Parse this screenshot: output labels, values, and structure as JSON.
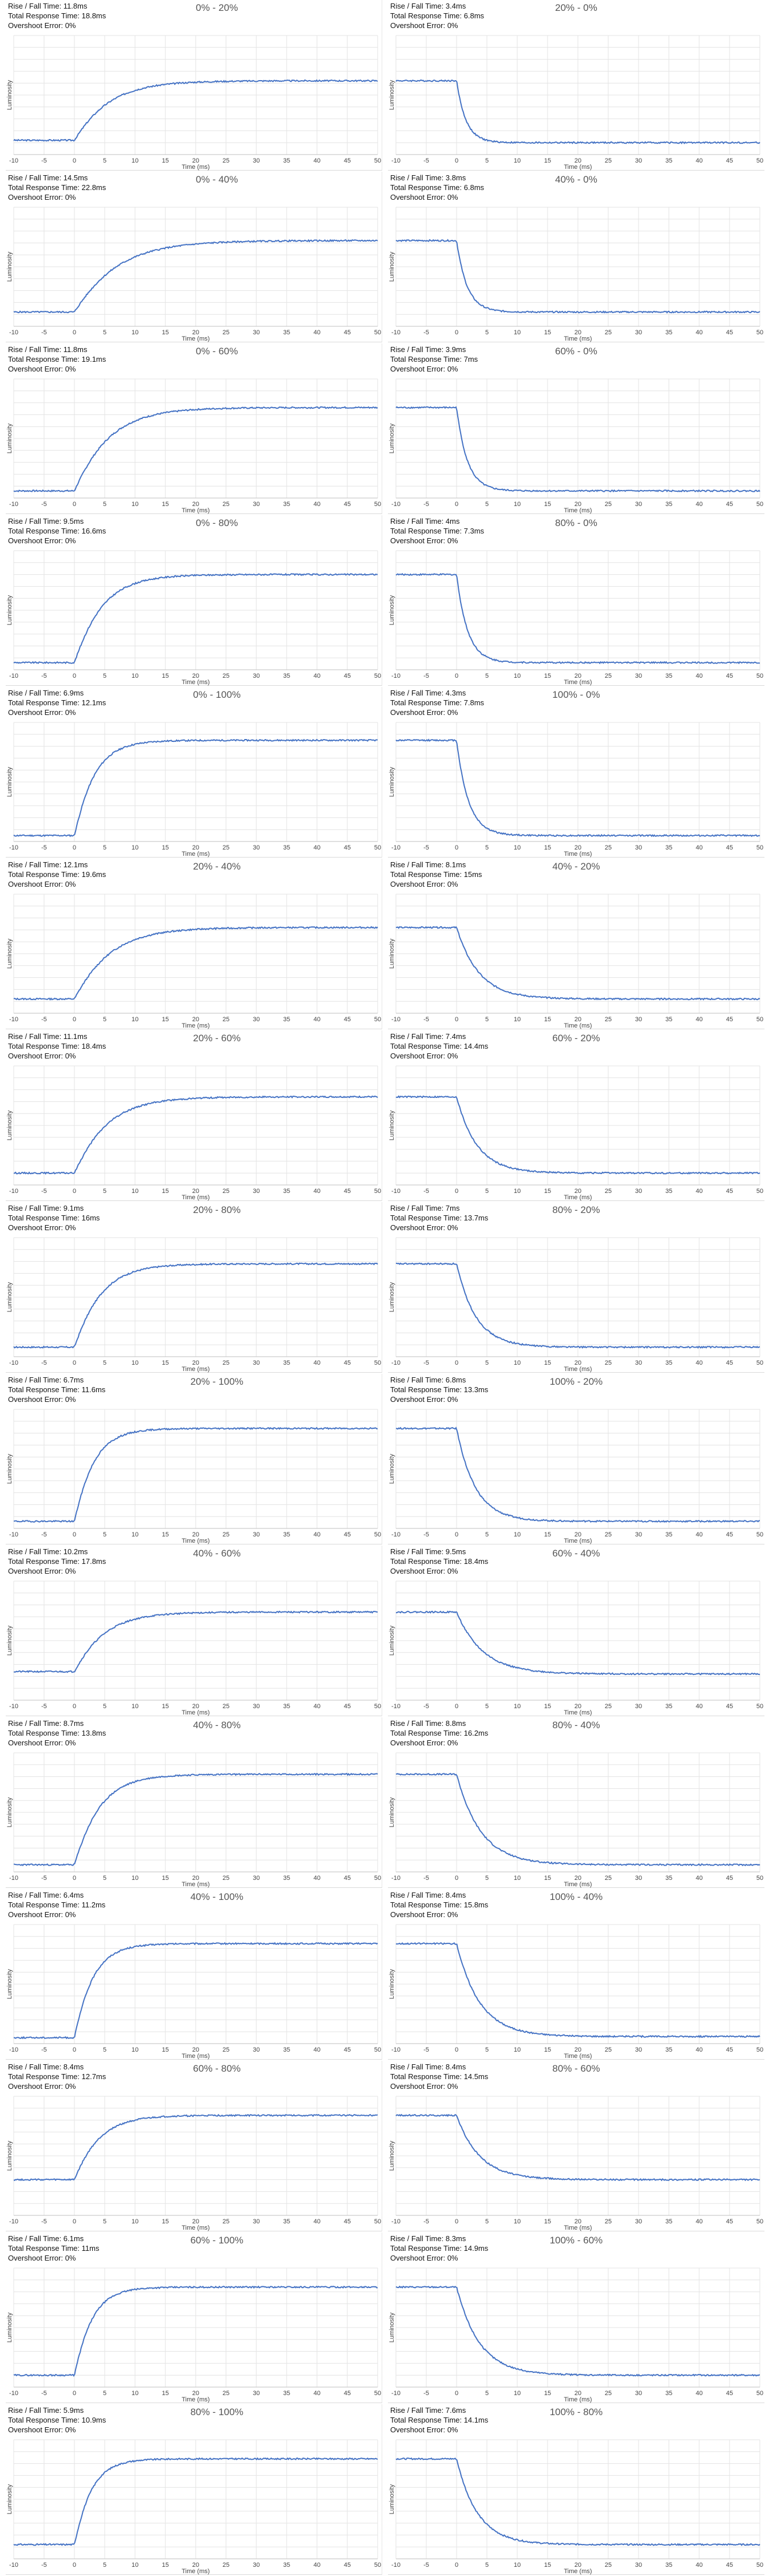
{
  "labels": {
    "rise_fall": "Rise / Fall Time:",
    "total": "Total Response Time:",
    "overshoot": "Overshoot Error:",
    "xlabel": "Time (ms)",
    "ylabel": "Luminosity"
  },
  "colors": {
    "line": "#4472c4",
    "grid": "#e3e3e3",
    "axis": "#bfbfbf"
  },
  "chart_data": [
    {
      "type": "line",
      "title": "0% - 20%",
      "rise_fall": "11.8ms",
      "total": "18.8ms",
      "overshoot": "0%",
      "start": 0.12,
      "end": 0.62,
      "xlim": [
        -10,
        50
      ],
      "xticks": [
        -10,
        -5,
        0,
        5,
        10,
        15,
        20,
        25,
        30,
        35,
        40,
        45,
        50
      ],
      "xlabel": "Time (ms)",
      "ylabel": "Luminosity"
    },
    {
      "type": "line",
      "title": "20% - 0%",
      "rise_fall": "3.4ms",
      "total": "6.8ms",
      "overshoot": "0%",
      "start": 0.62,
      "end": 0.1,
      "xlim": [
        -10,
        50
      ],
      "xticks": [
        -10,
        -5,
        0,
        5,
        10,
        15,
        20,
        25,
        30,
        35,
        40,
        45,
        50
      ],
      "xlabel": "Time (ms)",
      "ylabel": "Luminosity"
    },
    {
      "type": "line",
      "title": "0% - 40%",
      "rise_fall": "14.5ms",
      "total": "22.8ms",
      "overshoot": "0%",
      "start": 0.12,
      "end": 0.72,
      "xlim": [
        -10,
        50
      ],
      "xticks": [
        -10,
        -5,
        0,
        5,
        10,
        15,
        20,
        25,
        30,
        35,
        40,
        45,
        50
      ],
      "xlabel": "Time (ms)",
      "ylabel": "Luminosity"
    },
    {
      "type": "line",
      "title": "40% - 0%",
      "rise_fall": "3.8ms",
      "total": "6.8ms",
      "overshoot": "0%",
      "start": 0.72,
      "end": 0.12,
      "xlim": [
        -10,
        50
      ],
      "xticks": [
        -10,
        -5,
        0,
        5,
        10,
        15,
        20,
        25,
        30,
        35,
        40,
        45,
        50
      ],
      "xlabel": "Time (ms)",
      "ylabel": "Luminosity"
    },
    {
      "type": "line",
      "title": "0% - 60%",
      "rise_fall": "11.8ms",
      "total": "19.1ms",
      "overshoot": "0%",
      "start": 0.06,
      "end": 0.76,
      "xlim": [
        -10,
        50
      ],
      "xticks": [
        -10,
        -5,
        0,
        5,
        10,
        15,
        20,
        25,
        30,
        35,
        40,
        45,
        50
      ],
      "xlabel": "Time (ms)",
      "ylabel": "Luminosity"
    },
    {
      "type": "line",
      "title": "60% - 0%",
      "rise_fall": "3.9ms",
      "total": "7ms",
      "overshoot": "0%",
      "start": 0.76,
      "end": 0.06,
      "xlim": [
        -10,
        50
      ],
      "xticks": [
        -10,
        -5,
        0,
        5,
        10,
        15,
        20,
        25,
        30,
        35,
        40,
        45,
        50
      ],
      "xlabel": "Time (ms)",
      "ylabel": "Luminosity"
    },
    {
      "type": "line",
      "title": "0% - 80%",
      "rise_fall": "9.5ms",
      "total": "16.6ms",
      "overshoot": "0%",
      "start": 0.06,
      "end": 0.8,
      "xlim": [
        -10,
        50
      ],
      "xticks": [
        -10,
        -5,
        0,
        5,
        10,
        15,
        20,
        25,
        30,
        35,
        40,
        45,
        50
      ],
      "xlabel": "Time (ms)",
      "ylabel": "Luminosity"
    },
    {
      "type": "line",
      "title": "80% - 0%",
      "rise_fall": "4ms",
      "total": "7.3ms",
      "overshoot": "0%",
      "start": 0.8,
      "end": 0.06,
      "xlim": [
        -10,
        50
      ],
      "xticks": [
        -10,
        -5,
        0,
        5,
        10,
        15,
        20,
        25,
        30,
        35,
        40,
        45,
        50
      ],
      "xlabel": "Time (ms)",
      "ylabel": "Luminosity"
    },
    {
      "type": "line",
      "title": "0% - 100%",
      "rise_fall": "6.9ms",
      "total": "12.1ms",
      "overshoot": "0%",
      "start": 0.05,
      "end": 0.85,
      "xlim": [
        -10,
        50
      ],
      "xticks": [
        -10,
        -5,
        0,
        5,
        10,
        15,
        20,
        25,
        30,
        35,
        40,
        45,
        50
      ],
      "xlabel": "Time (ms)",
      "ylabel": "Luminosity"
    },
    {
      "type": "line",
      "title": "100% - 0%",
      "rise_fall": "4.3ms",
      "total": "7.8ms",
      "overshoot": "0%",
      "start": 0.85,
      "end": 0.05,
      "xlim": [
        -10,
        50
      ],
      "xticks": [
        -10,
        -5,
        0,
        5,
        10,
        15,
        20,
        25,
        30,
        35,
        40,
        45,
        50
      ],
      "xlabel": "Time (ms)",
      "ylabel": "Luminosity"
    },
    {
      "type": "line",
      "title": "20% - 40%",
      "rise_fall": "12.1ms",
      "total": "19.6ms",
      "overshoot": "0%",
      "start": 0.12,
      "end": 0.72,
      "xlim": [
        -10,
        50
      ],
      "xticks": [
        -10,
        -5,
        0,
        5,
        10,
        15,
        20,
        25,
        30,
        35,
        40,
        45,
        50
      ],
      "xlabel": "Time (ms)",
      "ylabel": "Luminosity"
    },
    {
      "type": "line",
      "title": "40% - 20%",
      "rise_fall": "8.1ms",
      "total": "15ms",
      "overshoot": "0%",
      "start": 0.72,
      "end": 0.12,
      "xlim": [
        -10,
        50
      ],
      "xticks": [
        -10,
        -5,
        0,
        5,
        10,
        15,
        20,
        25,
        30,
        35,
        40,
        45,
        50
      ],
      "xlabel": "Time (ms)",
      "ylabel": "Luminosity"
    },
    {
      "type": "line",
      "title": "20% - 60%",
      "rise_fall": "11.1ms",
      "total": "18.4ms",
      "overshoot": "0%",
      "start": 0.1,
      "end": 0.74,
      "xlim": [
        -10,
        50
      ],
      "xticks": [
        -10,
        -5,
        0,
        5,
        10,
        15,
        20,
        25,
        30,
        35,
        40,
        45,
        50
      ],
      "xlabel": "Time (ms)",
      "ylabel": "Luminosity"
    },
    {
      "type": "line",
      "title": "60% - 20%",
      "rise_fall": "7.4ms",
      "total": "14.4ms",
      "overshoot": "0%",
      "start": 0.74,
      "end": 0.1,
      "xlim": [
        -10,
        50
      ],
      "xticks": [
        -10,
        -5,
        0,
        5,
        10,
        15,
        20,
        25,
        30,
        35,
        40,
        45,
        50
      ],
      "xlabel": "Time (ms)",
      "ylabel": "Luminosity"
    },
    {
      "type": "line",
      "title": "20% - 80%",
      "rise_fall": "9.1ms",
      "total": "16ms",
      "overshoot": "0%",
      "start": 0.08,
      "end": 0.78,
      "xlim": [
        -10,
        50
      ],
      "xticks": [
        -10,
        -5,
        0,
        5,
        10,
        15,
        20,
        25,
        30,
        35,
        40,
        45,
        50
      ],
      "xlabel": "Time (ms)",
      "ylabel": "Luminosity"
    },
    {
      "type": "line",
      "title": "80% - 20%",
      "rise_fall": "7ms",
      "total": "13.7ms",
      "overshoot": "0%",
      "start": 0.78,
      "end": 0.08,
      "xlim": [
        -10,
        50
      ],
      "xticks": [
        -10,
        -5,
        0,
        5,
        10,
        15,
        20,
        25,
        30,
        35,
        40,
        45,
        50
      ],
      "xlabel": "Time (ms)",
      "ylabel": "Luminosity"
    },
    {
      "type": "line",
      "title": "20% - 100%",
      "rise_fall": "6.7ms",
      "total": "11.6ms",
      "overshoot": "0%",
      "start": 0.06,
      "end": 0.84,
      "xlim": [
        -10,
        50
      ],
      "xticks": [
        -10,
        -5,
        0,
        5,
        10,
        15,
        20,
        25,
        30,
        35,
        40,
        45,
        50
      ],
      "xlabel": "Time (ms)",
      "ylabel": "Luminosity"
    },
    {
      "type": "line",
      "title": "100% - 20%",
      "rise_fall": "6.8ms",
      "total": "13.3ms",
      "overshoot": "0%",
      "start": 0.84,
      "end": 0.06,
      "xlim": [
        -10,
        50
      ],
      "xticks": [
        -10,
        -5,
        0,
        5,
        10,
        15,
        20,
        25,
        30,
        35,
        40,
        45,
        50
      ],
      "xlabel": "Time (ms)",
      "ylabel": "Luminosity"
    },
    {
      "type": "line",
      "title": "40% - 60%",
      "rise_fall": "10.2ms",
      "total": "17.8ms",
      "overshoot": "0%",
      "start": 0.24,
      "end": 0.74,
      "xlim": [
        -10,
        50
      ],
      "xticks": [
        -10,
        -5,
        0,
        5,
        10,
        15,
        20,
        25,
        30,
        35,
        40,
        45,
        50
      ],
      "xlabel": "Time (ms)",
      "ylabel": "Luminosity"
    },
    {
      "type": "line",
      "title": "60% - 40%",
      "rise_fall": "9.5ms",
      "total": "18.4ms",
      "overshoot": "0%",
      "start": 0.74,
      "end": 0.22,
      "xlim": [
        -10,
        50
      ],
      "xticks": [
        -10,
        -5,
        0,
        5,
        10,
        15,
        20,
        25,
        30,
        35,
        40,
        45,
        50
      ],
      "xlabel": "Time (ms)",
      "ylabel": "Luminosity"
    },
    {
      "type": "line",
      "title": "40% - 80%",
      "rise_fall": "8.7ms",
      "total": "13.8ms",
      "overshoot": "0%",
      "start": 0.06,
      "end": 0.82,
      "xlim": [
        -10,
        50
      ],
      "xticks": [
        -10,
        -5,
        0,
        5,
        10,
        15,
        20,
        25,
        30,
        35,
        40,
        45,
        50
      ],
      "xlabel": "Time (ms)",
      "ylabel": "Luminosity"
    },
    {
      "type": "line",
      "title": "80% - 40%",
      "rise_fall": "8.8ms",
      "total": "16.2ms",
      "overshoot": "0%",
      "start": 0.82,
      "end": 0.06,
      "xlim": [
        -10,
        50
      ],
      "xticks": [
        -10,
        -5,
        0,
        5,
        10,
        15,
        20,
        25,
        30,
        35,
        40,
        45,
        50
      ],
      "xlabel": "Time (ms)",
      "ylabel": "Luminosity"
    },
    {
      "type": "line",
      "title": "40% - 100%",
      "rise_fall": "6.4ms",
      "total": "11.2ms",
      "overshoot": "0%",
      "start": 0.05,
      "end": 0.84,
      "xlim": [
        -10,
        50
      ],
      "xticks": [
        -10,
        -5,
        0,
        5,
        10,
        15,
        20,
        25,
        30,
        35,
        40,
        45,
        50
      ],
      "xlabel": "Time (ms)",
      "ylabel": "Luminosity"
    },
    {
      "type": "line",
      "title": "100% - 40%",
      "rise_fall": "8.4ms",
      "total": "15.8ms",
      "overshoot": "0%",
      "start": 0.84,
      "end": 0.06,
      "xlim": [
        -10,
        50
      ],
      "xticks": [
        -10,
        -5,
        0,
        5,
        10,
        15,
        20,
        25,
        30,
        35,
        40,
        45,
        50
      ],
      "xlabel": "Time (ms)",
      "ylabel": "Luminosity"
    },
    {
      "type": "line",
      "title": "60% - 80%",
      "rise_fall": "8.4ms",
      "total": "12.7ms",
      "overshoot": "0%",
      "start": 0.3,
      "end": 0.84,
      "xlim": [
        -10,
        50
      ],
      "xticks": [
        -10,
        -5,
        0,
        5,
        10,
        15,
        20,
        25,
        30,
        35,
        40,
        45,
        50
      ],
      "xlabel": "Time (ms)",
      "ylabel": "Luminosity"
    },
    {
      "type": "line",
      "title": "80% - 60%",
      "rise_fall": "8.4ms",
      "total": "14.5ms",
      "overshoot": "0%",
      "start": 0.84,
      "end": 0.3,
      "xlim": [
        -10,
        50
      ],
      "xticks": [
        -10,
        -5,
        0,
        5,
        10,
        15,
        20,
        25,
        30,
        35,
        40,
        45,
        50
      ],
      "xlabel": "Time (ms)",
      "ylabel": "Luminosity"
    },
    {
      "type": "line",
      "title": "60% - 100%",
      "rise_fall": "6.1ms",
      "total": "11ms",
      "overshoot": "0%",
      "start": 0.1,
      "end": 0.84,
      "xlim": [
        -10,
        50
      ],
      "xticks": [
        -10,
        -5,
        0,
        5,
        10,
        15,
        20,
        25,
        30,
        35,
        40,
        45,
        50
      ],
      "xlabel": "Time (ms)",
      "ylabel": "Luminosity"
    },
    {
      "type": "line",
      "title": "100% - 60%",
      "rise_fall": "8.3ms",
      "total": "14.9ms",
      "overshoot": "0%",
      "start": 0.84,
      "end": 0.1,
      "xlim": [
        -10,
        50
      ],
      "xticks": [
        -10,
        -5,
        0,
        5,
        10,
        15,
        20,
        25,
        30,
        35,
        40,
        45,
        50
      ],
      "xlabel": "Time (ms)",
      "ylabel": "Luminosity"
    },
    {
      "type": "line",
      "title": "80% - 100%",
      "rise_fall": "5.9ms",
      "total": "10.9ms",
      "overshoot": "0%",
      "start": 0.12,
      "end": 0.84,
      "xlim": [
        -10,
        50
      ],
      "xticks": [
        -10,
        -5,
        0,
        5,
        10,
        15,
        20,
        25,
        30,
        35,
        40,
        45,
        50
      ],
      "xlabel": "Time (ms)",
      "ylabel": "Luminosity"
    },
    {
      "type": "line",
      "title": "100% - 80%",
      "rise_fall": "7.6ms",
      "total": "14.1ms",
      "overshoot": "0%",
      "start": 0.84,
      "end": 0.12,
      "xlim": [
        -10,
        50
      ],
      "xticks": [
        -10,
        -5,
        0,
        5,
        10,
        15,
        20,
        25,
        30,
        35,
        40,
        45,
        50
      ],
      "xlabel": "Time (ms)",
      "ylabel": "Luminosity"
    }
  ]
}
